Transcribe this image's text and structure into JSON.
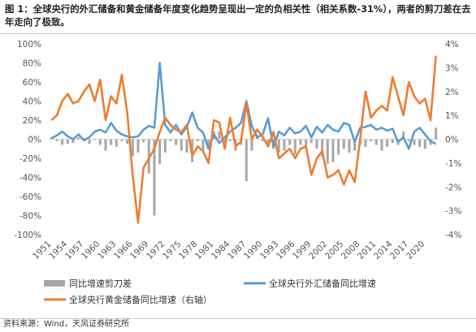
{
  "title": "图 1：全球央行的外汇储备和黄金储备年度变化趋势呈现出一定的负相关性（相关系数-31%），两者的剪刀差在去年走向了极致。",
  "source": "资料来源：Wind，天风证券研究所",
  "colors": {
    "bar": "#a6a6a6",
    "fx": "#5b9bd5",
    "gold": "#ed7d31"
  },
  "chart_data": {
    "type": "line",
    "x": [
      1951,
      1952,
      1953,
      1954,
      1955,
      1956,
      1957,
      1958,
      1959,
      1960,
      1961,
      1962,
      1963,
      1964,
      1965,
      1966,
      1967,
      1968,
      1969,
      1970,
      1971,
      1972,
      1973,
      1974,
      1975,
      1976,
      1977,
      1978,
      1979,
      1980,
      1981,
      1982,
      1983,
      1984,
      1985,
      1986,
      1987,
      1988,
      1989,
      1990,
      1991,
      1992,
      1993,
      1994,
      1995,
      1996,
      1997,
      1998,
      1999,
      2000,
      2001,
      2002,
      2003,
      2004,
      2005,
      2006,
      2007,
      2008,
      2009,
      2010,
      2011,
      2012,
      2013,
      2014,
      2015,
      2016,
      2017,
      2018,
      2019,
      2020,
      2021,
      2022
    ],
    "x_tick_labels": [
      "1951",
      "1954",
      "1957",
      "1960",
      "1963",
      "1966",
      "1969",
      "1972",
      "1975",
      "1978",
      "1981",
      "1984",
      "1987",
      "1990",
      "1993",
      "1996",
      "1999",
      "2002",
      "2005",
      "2008",
      "2011",
      "2014",
      "2017",
      "2020"
    ],
    "left_axis": {
      "ylim": [
        -100,
        100
      ],
      "ticks": [
        "100%",
        "80%",
        "60%",
        "40%",
        "20%",
        "0%",
        "-20%",
        "-40%",
        "-60%",
        "-80%",
        "-100%"
      ]
    },
    "right_axis": {
      "ylim": [
        -4,
        4
      ],
      "ticks": [
        "4%",
        "3%",
        "2%",
        "1%",
        "0%",
        "-1%",
        "-2%",
        "-3%",
        "-4%"
      ]
    },
    "series": [
      {
        "name": "同比增速剪刀差",
        "type": "bar",
        "axis": "left",
        "values": [
          2,
          -2,
          -6,
          -5,
          -4,
          2,
          -2,
          -5,
          -1,
          -6,
          -12,
          -6,
          -8,
          -2,
          -5,
          -18,
          -14,
          -3,
          -36,
          -80,
          -26,
          -14,
          -2,
          -6,
          -12,
          -14,
          -24,
          -2,
          -12,
          -8,
          8,
          8,
          -6,
          -2,
          -12,
          -6,
          -44,
          -12,
          4,
          -2,
          -6,
          -10,
          -14,
          -12,
          -6,
          -16,
          -6,
          -8,
          -4,
          -10,
          -18,
          -26,
          -24,
          -16,
          -10,
          -14,
          -12,
          -6,
          -8,
          -2,
          -6,
          -12,
          -8,
          -4,
          -6,
          8,
          -2,
          -6,
          -8,
          -10,
          -6,
          12
        ]
      },
      {
        "name": "全球央行外汇储备同比增速",
        "type": "line",
        "axis": "left",
        "values": [
          1,
          4,
          8,
          3,
          0,
          5,
          -1,
          2,
          8,
          10,
          7,
          17,
          9,
          5,
          3,
          2,
          3,
          10,
          14,
          12,
          80,
          15,
          7,
          15,
          5,
          13,
          28,
          12,
          7,
          -10,
          5,
          -4,
          2,
          8,
          12,
          17,
          40,
          14,
          2,
          5,
          22,
          -8,
          8,
          4,
          12,
          6,
          8,
          14,
          2,
          13,
          7,
          15,
          10,
          8,
          17,
          15,
          -3,
          12,
          13,
          15,
          10,
          12,
          9,
          11,
          -3,
          2,
          -10,
          8,
          12,
          5,
          -2,
          -5
        ]
      },
      {
        "name": "全球央行黄金储备同比增速（右轴）",
        "type": "line",
        "axis": "right",
        "values": [
          0.8,
          1.0,
          1.6,
          1.9,
          1.5,
          1.6,
          2.0,
          2.3,
          1.6,
          2.5,
          0.8,
          1.8,
          1.5,
          2.7,
          1.1,
          -1.5,
          -3.5,
          -1.2,
          -0.8,
          -0.4,
          0.3,
          0.9,
          0.6,
          0.4,
          0.3,
          0.6,
          -0.7,
          -0.3,
          -0.5,
          -1.0,
          0.8,
          0.7,
          -0.4,
          0.9,
          -0.3,
          -0.1,
          1.5,
          0.0,
          0.4,
          0.1,
          -0.3,
          0.3,
          -0.8,
          -0.6,
          -0.4,
          -0.8,
          -0.4,
          -0.3,
          -1.5,
          -0.8,
          -0.5,
          -1.6,
          -1.5,
          -1.3,
          -1.9,
          -1.3,
          -1.8,
          0.0,
          2.0,
          0.9,
          1.2,
          1.4,
          1.2,
          2.6,
          1.8,
          1.0,
          2.4,
          1.8,
          1.5,
          1.7,
          0.8,
          3.5
        ]
      }
    ]
  }
}
